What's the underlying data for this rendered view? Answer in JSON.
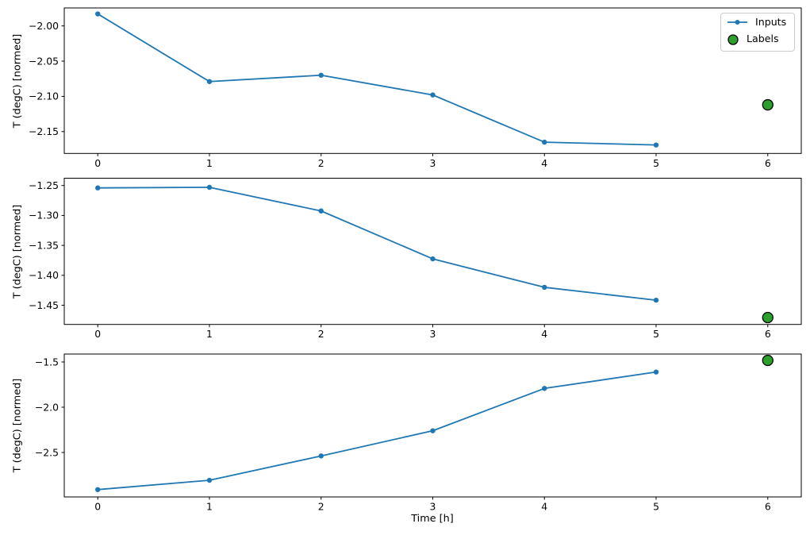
{
  "figure": {
    "background": "#ffffff",
    "xlabel": "Time [h]",
    "colors": {
      "line": "#1f77b4",
      "label_fill": "#2ca02c",
      "label_edge": "#000000",
      "spine": "#000000",
      "tick": "#000000",
      "legend_border": "#cccccc"
    },
    "legend": {
      "position": "upper right",
      "items": [
        {
          "label": "Inputs",
          "type": "line-with-marker",
          "color": "#1f77b4"
        },
        {
          "label": "Labels",
          "type": "circle",
          "fill": "#2ca02c",
          "edge": "#000000"
        }
      ]
    }
  },
  "chart_data": [
    {
      "type": "line",
      "title": "",
      "xlabel": "",
      "ylabel": "T (degC) [normed]",
      "x": [
        0,
        1,
        2,
        3,
        4,
        5
      ],
      "series": [
        {
          "name": "Inputs",
          "values": [
            -1.983,
            -2.079,
            -2.07,
            -2.098,
            -2.165,
            -2.169
          ]
        }
      ],
      "labels_point": {
        "name": "Labels",
        "x": 6,
        "y": -2.112
      },
      "xticks": [
        0,
        1,
        2,
        3,
        4,
        5,
        6
      ],
      "xtick_labels": [
        "0",
        "1",
        "2",
        "3",
        "4",
        "5",
        "6"
      ],
      "yticks": [
        -2.0,
        -2.05,
        -2.1,
        -2.15
      ],
      "ytick_labels": [
        "−2.00",
        "−2.05",
        "−2.10",
        "−2.15"
      ],
      "xlim": [
        -0.3,
        6.3
      ],
      "ylim": [
        -2.181,
        -1.9745
      ],
      "grid": false
    },
    {
      "type": "line",
      "title": "",
      "xlabel": "",
      "ylabel": "T (degC) [normed]",
      "x": [
        0,
        1,
        2,
        3,
        4,
        5
      ],
      "series": [
        {
          "name": "Inputs",
          "values": [
            -1.254,
            -1.253,
            -1.2925,
            -1.3725,
            -1.42,
            -1.4415
          ]
        }
      ],
      "labels_point": {
        "name": "Labels",
        "x": 6,
        "y": -1.4705
      },
      "xticks": [
        0,
        1,
        2,
        3,
        4,
        5,
        6
      ],
      "xtick_labels": [
        "0",
        "1",
        "2",
        "3",
        "4",
        "5",
        "6"
      ],
      "yticks": [
        -1.25,
        -1.3,
        -1.35,
        -1.4,
        -1.45
      ],
      "ytick_labels": [
        "−1.25",
        "−1.30",
        "−1.35",
        "−1.40",
        "−1.45"
      ],
      "xlim": [
        -0.3,
        6.3
      ],
      "ylim": [
        -1.482,
        -1.2378
      ],
      "grid": false
    },
    {
      "type": "line",
      "title": "",
      "xlabel": "Time [h]",
      "ylabel": "T (degC) [normed]",
      "x": [
        0,
        1,
        2,
        3,
        4,
        5
      ],
      "series": [
        {
          "name": "Inputs",
          "values": [
            -2.91,
            -2.807,
            -2.538,
            -2.26,
            -1.792,
            -1.611
          ]
        }
      ],
      "labels_point": {
        "name": "Labels",
        "x": 6,
        "y": -1.4825
      },
      "xticks": [
        0,
        1,
        2,
        3,
        4,
        5,
        6
      ],
      "xtick_labels": [
        "0",
        "1",
        "2",
        "3",
        "4",
        "5",
        "6"
      ],
      "yticks": [
        -1.5,
        -2.0,
        -2.5
      ],
      "ytick_labels": [
        "−1.5",
        "−2.0",
        "−2.5"
      ],
      "xlim": [
        -0.3,
        6.3
      ],
      "ylim": [
        -2.991,
        -1.4123
      ],
      "grid": false
    }
  ]
}
